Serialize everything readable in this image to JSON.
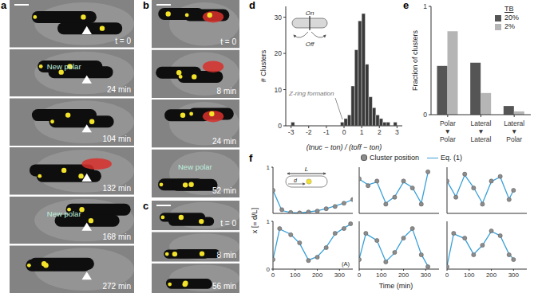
{
  "panel_labels": [
    "a",
    "b",
    "c",
    "d",
    "e",
    "f"
  ],
  "micrographs": {
    "a": {
      "frames": [
        "t = 0",
        "24 min",
        "104 min",
        "132 min",
        "168 min",
        "272 min"
      ],
      "callouts": [
        {
          "frame": 1,
          "text": "New polar"
        },
        {
          "frame": 4,
          "text": "New polar"
        }
      ]
    },
    "b": {
      "frames": [
        "t = 0",
        "8 min",
        "24 min",
        "52 min"
      ],
      "callouts": [
        {
          "frame": 3,
          "text": "New polar"
        }
      ]
    },
    "c": {
      "frames": [
        "t = 0",
        "8 min",
        "56 min"
      ],
      "callouts": []
    }
  },
  "chart_data": [
    {
      "type": "histogram",
      "x_label": "(tnuc − ton) / (toff − ton)",
      "y_label": "# Clusters",
      "bins": [
        -3.2,
        -3,
        -2.8,
        -2.6,
        -2.4,
        -2.2,
        -2,
        -1.8,
        -1.6,
        -1.4,
        -1.2,
        -1,
        -0.8,
        -0.6,
        -0.4,
        -0.2,
        0,
        0.2,
        0.4,
        0.6,
        0.8,
        1,
        1.2,
        1.4,
        1.6,
        1.8,
        2,
        2.2,
        2.4,
        2.6,
        2.8,
        3,
        3.2
      ],
      "values": [
        0,
        1,
        0,
        0,
        0,
        0,
        0,
        0,
        0,
        0,
        0,
        0,
        0,
        0,
        0,
        1,
        2,
        3,
        11,
        21,
        29,
        31,
        17,
        8,
        5,
        3,
        2,
        1,
        1,
        0,
        1,
        0
      ],
      "color": "#3a3a3a",
      "xlim": [
        -3.3,
        3.3
      ],
      "xticks": [
        -3,
        -2,
        -1,
        0,
        1,
        2,
        3
      ],
      "ylim": [
        0,
        33
      ],
      "yticks": [
        0,
        10,
        20,
        30
      ],
      "annotations": [
        "On",
        "Off",
        "Z-ring formation"
      ]
    },
    {
      "type": "bar",
      "y_label": "Fraction of clusters",
      "categories": [
        "Polar ▼ Polar",
        "Lateral ▼ Lateral",
        "Lateral ▼ Polar"
      ],
      "series": [
        {
          "name": "20%",
          "color": "#555555",
          "values": [
            0.45,
            0.48,
            0.08
          ]
        },
        {
          "name": "2%",
          "color": "#b5b5b5",
          "values": [
            0.77,
            0.2,
            0.03
          ]
        }
      ],
      "ylim": [
        0,
        1
      ],
      "yticks": [
        0,
        1
      ],
      "legend": "top-right",
      "legend_title": "TB"
    },
    {
      "type": "line",
      "x": [
        0,
        40,
        80,
        120,
        160,
        200,
        240,
        280,
        320,
        360
      ],
      "series": [
        {
          "name": "Cluster position",
          "type": "scatter",
          "marker": "circle",
          "color": "#8c8c8c",
          "values": [
            0.5,
            0.08,
            0.02,
            0.01,
            0.03,
            0.05,
            0.1,
            0.15,
            0.22,
            0.3
          ]
        },
        {
          "name": "Eq. (1)",
          "type": "line",
          "color": "#3aa0d8",
          "values": [
            0.5,
            0.06,
            0.02,
            0.01,
            0.03,
            0.06,
            0.1,
            0.16,
            0.22,
            0.3
          ]
        }
      ],
      "xlim": [
        0,
        360
      ],
      "xticks": [
        0,
        100,
        200,
        300
      ],
      "ylim": [
        0,
        1
      ],
      "yticks": [
        0,
        1
      ],
      "tick_labels": "y",
      "y_label": "x [= d/L]",
      "annotations": [
        "L",
        "d"
      ]
    },
    {
      "type": "line",
      "x": [
        0,
        40,
        80,
        120,
        160,
        200,
        240,
        280,
        310
      ],
      "series": [
        {
          "name": "Cluster position",
          "type": "scatter",
          "marker": "circle",
          "color": "#8c8c8c",
          "values": [
            0.75,
            0.6,
            0.7,
            0.2,
            0.35,
            0.7,
            0.55,
            0.2,
            0.9
          ]
        },
        {
          "name": "Eq. (1)",
          "type": "line",
          "color": "#3aa0d8",
          "values": [
            0.74,
            0.62,
            0.68,
            0.22,
            0.36,
            0.68,
            0.56,
            0.22,
            0.88
          ]
        }
      ],
      "xlim": [
        0,
        360
      ],
      "xticks": [
        0,
        100,
        200,
        300
      ],
      "ylim": [
        0,
        1
      ],
      "yticks": [
        0,
        1
      ],
      "tick_labels": false,
      "legend": "top"
    },
    {
      "type": "line",
      "x": [
        0,
        40,
        80,
        120,
        160,
        200,
        240,
        280,
        300
      ],
      "series": [
        {
          "name": "Cluster position",
          "type": "scatter",
          "marker": "circle",
          "color": "#8c8c8c",
          "values": [
            0.7,
            0.35,
            0.85,
            0.55,
            0.2,
            0.7,
            0.8,
            0.3,
            0.5
          ]
        },
        {
          "name": "Eq. (1)",
          "type": "line",
          "color": "#3aa0d8",
          "values": [
            0.7,
            0.36,
            0.83,
            0.56,
            0.22,
            0.69,
            0.79,
            0.31,
            0.5
          ]
        }
      ],
      "xlim": [
        0,
        360
      ],
      "xticks": [
        0,
        100,
        200,
        300
      ],
      "ylim": [
        0,
        1
      ],
      "yticks": [
        0,
        1
      ],
      "tick_labels": false
    },
    {
      "type": "line",
      "x": [
        0,
        30,
        80,
        120,
        160,
        200,
        240,
        280,
        320,
        350
      ],
      "series": [
        {
          "name": "Cluster position",
          "type": "scatter",
          "marker": "circle",
          "color": "#8c8c8c",
          "values": [
            0.2,
            0.85,
            0.72,
            0.55,
            0.18,
            0.25,
            0.45,
            0.75,
            0.85,
            0.95
          ]
        },
        {
          "name": "Eq. (1)",
          "type": "line",
          "color": "#3aa0d8",
          "values": [
            0.2,
            0.84,
            0.73,
            0.54,
            0.19,
            0.26,
            0.46,
            0.74,
            0.86,
            0.94
          ]
        }
      ],
      "xlim": [
        0,
        360
      ],
      "xticks": [
        0,
        100,
        200,
        300
      ],
      "ylim": [
        0,
        1
      ],
      "yticks": [
        0,
        1
      ],
      "annotations": [
        "(A)"
      ]
    },
    {
      "type": "line",
      "x": [
        0,
        30,
        80,
        120,
        160,
        200,
        240,
        280,
        310
      ],
      "series": [
        {
          "name": "Cluster position",
          "type": "scatter",
          "marker": "circle",
          "color": "#8c8c8c",
          "values": [
            0.2,
            0.75,
            0.6,
            0.15,
            0.35,
            0.65,
            0.85,
            0.3,
            0.05
          ]
        },
        {
          "name": "Eq. (1)",
          "type": "line",
          "color": "#3aa0d8",
          "values": [
            0.21,
            0.74,
            0.6,
            0.16,
            0.34,
            0.66,
            0.84,
            0.31,
            0.06
          ]
        }
      ],
      "xlim": [
        0,
        360
      ],
      "xticks": [
        0,
        100,
        200,
        300
      ],
      "ylim": [
        0,
        1
      ],
      "yticks": [
        0,
        1
      ],
      "tick_labels": "x",
      "x_label": "Time (min)"
    },
    {
      "type": "line",
      "x": [
        0,
        30,
        80,
        120,
        160,
        200,
        240,
        280,
        300
      ],
      "series": [
        {
          "name": "Cluster position",
          "type": "scatter",
          "marker": "circle",
          "color": "#8c8c8c",
          "values": [
            0.05,
            0.75,
            0.65,
            0.3,
            0.5,
            0.8,
            0.7,
            0.3,
            0.2
          ]
        },
        {
          "name": "Eq. (1)",
          "type": "line",
          "color": "#3aa0d8",
          "values": [
            0.06,
            0.74,
            0.64,
            0.31,
            0.5,
            0.79,
            0.7,
            0.31,
            0.21
          ]
        }
      ],
      "xlim": [
        0,
        360
      ],
      "xticks": [
        0,
        100,
        200,
        300
      ],
      "ylim": [
        0,
        1
      ],
      "yticks": [
        0,
        1
      ],
      "tick_labels": "x"
    }
  ]
}
